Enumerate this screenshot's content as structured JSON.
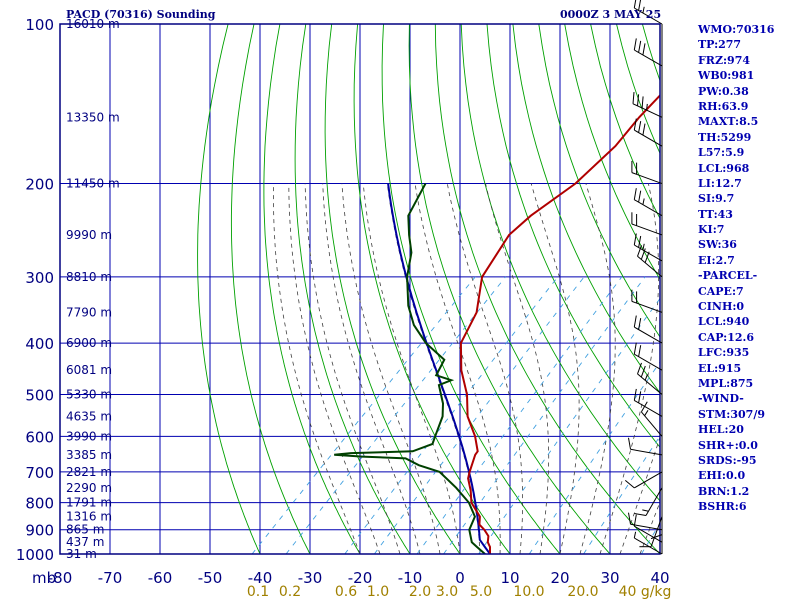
{
  "header": {
    "station": "PACD (70316) Sounding",
    "valid_time": "0000Z  3 MAY 25"
  },
  "indices": [
    "WMO:70316",
    "TP:277",
    "FRZ:974",
    "WB0:981",
    "PW:0.38",
    "RH:63.9",
    "MAXT:8.5",
    "TH:5299",
    "L57:5.9",
    "LCL:968",
    "LI:12.7",
    "SI:9.7",
    "TT:43",
    "KI:7",
    "SW:36",
    "EI:2.7",
    "-PARCEL-",
    "CAPE:7",
    "CINH:0",
    "LCL:940",
    "CAP:12.6",
    "LFC:935",
    "EL:915",
    "MPL:875",
    "-WIND-",
    "STM:307/9",
    "HEL:20",
    "SHR+:0.0",
    "SRDS:-95",
    "EHI:0.0",
    "BRN:1.2",
    "BSHR:6"
  ],
  "colors": {
    "frame": "#000080",
    "grid": "#0000b0",
    "dry_adiabat": "#00a000",
    "moist_adiabat": "#404040",
    "mixing_ratio": "#40a0e0",
    "temperature": "#b00000",
    "dewpoint": "#004000",
    "parcel": "#0000a0",
    "mixing_label": "#a08000",
    "wind_barb": "#000000",
    "text": "#000080"
  },
  "chart_data": {
    "type": "line",
    "title": "PACD (70316) Sounding",
    "subtitle": "0000Z  3 MAY 25",
    "x_axis": {
      "unit_label": "mb",
      "ticks": [
        -80,
        -70,
        -60,
        -50,
        -40,
        -30,
        -20,
        -10,
        0,
        10,
        20,
        30,
        40
      ],
      "tick_labels": [
        "-80",
        "-70",
        "-60",
        "-50",
        "-40",
        "-30",
        "-20",
        "-10",
        "0",
        "10",
        "20",
        "30",
        "40"
      ],
      "range": [
        -80,
        40
      ]
    },
    "y_axis": {
      "scale": "log",
      "reversed": true,
      "range": [
        1000,
        100
      ],
      "ticks": [
        100,
        200,
        300,
        400,
        500,
        600,
        700,
        800,
        900,
        1000
      ],
      "tick_labels": [
        "100",
        "200",
        "300",
        "400",
        "500",
        "600",
        "700",
        "800",
        "900",
        "1000"
      ]
    },
    "height_labels": [
      {
        "p": 100,
        "label": "16010 m"
      },
      {
        "p": 150,
        "label": "13350 m"
      },
      {
        "p": 200,
        "label": "11450 m"
      },
      {
        "p": 250,
        "label": "9990 m"
      },
      {
        "p": 300,
        "label": "8810 m"
      },
      {
        "p": 350,
        "label": "7790 m"
      },
      {
        "p": 400,
        "label": "6900 m"
      },
      {
        "p": 450,
        "label": "6081 m"
      },
      {
        "p": 500,
        "label": "5330 m"
      },
      {
        "p": 550,
        "label": "4635 m"
      },
      {
        "p": 600,
        "label": "3990 m"
      },
      {
        "p": 650,
        "label": "3385 m"
      },
      {
        "p": 700,
        "label": "2821 m"
      },
      {
        "p": 750,
        "label": "2290 m"
      },
      {
        "p": 800,
        "label": "1791 m"
      },
      {
        "p": 850,
        "label": "1316 m"
      },
      {
        "p": 900,
        "label": "865 m"
      },
      {
        "p": 950,
        "label": "437 m"
      },
      {
        "p": 1000,
        "label": "31 m"
      }
    ],
    "mixing_ratio_labels": [
      "0.1",
      "0.2",
      "0.6",
      "1.0",
      "2.0",
      "3.0",
      "5.0",
      "10.0",
      "20.0",
      "40 g/kg"
    ],
    "mixing_ratio_values": [
      0.1,
      0.2,
      0.6,
      1.0,
      2.0,
      3.0,
      5.0,
      10.0,
      20.0,
      40.0
    ],
    "temperature": [
      [
        1000,
        6.0
      ],
      [
        970,
        4.6
      ],
      [
        950,
        3.2
      ],
      [
        925,
        2.1
      ],
      [
        900,
        0.0
      ],
      [
        880,
        -2.0
      ],
      [
        850,
        -3.5
      ],
      [
        800,
        -8.0
      ],
      [
        760,
        -10.5
      ],
      [
        720,
        -13.5
      ],
      [
        700,
        -14.5
      ],
      [
        650,
        -16.8
      ],
      [
        640,
        -17.0
      ],
      [
        600,
        -20.5
      ],
      [
        550,
        -26.0
      ],
      [
        500,
        -30.5
      ],
      [
        450,
        -36.5
      ],
      [
        400,
        -42.0
      ],
      [
        350,
        -45.0
      ],
      [
        300,
        -51.0
      ],
      [
        250,
        -54.0
      ],
      [
        230,
        -53.5
      ],
      [
        200,
        -51.0
      ],
      [
        170,
        -50.5
      ],
      [
        150,
        -51.5
      ],
      [
        120,
        -52.0
      ],
      [
        100,
        -53.0
      ]
    ],
    "dewpoint": [
      [
        1000,
        5.0
      ],
      [
        970,
        2.0
      ],
      [
        950,
        0.0
      ],
      [
        900,
        -3.0
      ],
      [
        850,
        -4.5
      ],
      [
        800,
        -8.5
      ],
      [
        750,
        -14.0
      ],
      [
        700,
        -20.5
      ],
      [
        680,
        -26.0
      ],
      [
        660,
        -30.0
      ],
      [
        655,
        -39.0
      ],
      [
        650,
        -45.0
      ],
      [
        645,
        -42.0
      ],
      [
        640,
        -30.0
      ],
      [
        620,
        -27.5
      ],
      [
        600,
        -28.5
      ],
      [
        550,
        -31.0
      ],
      [
        520,
        -33.5
      ],
      [
        480,
        -38.0
      ],
      [
        470,
        -36.5
      ],
      [
        460,
        -40.5
      ],
      [
        430,
        -42.0
      ],
      [
        400,
        -49.0
      ],
      [
        370,
        -55.0
      ],
      [
        340,
        -60.0
      ],
      [
        300,
        -66.0
      ],
      [
        270,
        -70.0
      ],
      [
        250,
        -74.0
      ],
      [
        230,
        -78.0
      ],
      [
        200,
        -81.0
      ]
    ],
    "parcel_path_pressures": [
      1000,
      970,
      950,
      900,
      850,
      800,
      750,
      700,
      650,
      600,
      550,
      500,
      450,
      400,
      350,
      300,
      250,
      220
    ],
    "wind_barbs": [
      {
        "p": 100,
        "dir": 300,
        "spd": 25
      },
      {
        "p": 120,
        "dir": 300,
        "spd": 30
      },
      {
        "p": 150,
        "dir": 295,
        "spd": 35
      },
      {
        "p": 170,
        "dir": 300,
        "spd": 30
      },
      {
        "p": 200,
        "dir": 290,
        "spd": 20
      },
      {
        "p": 230,
        "dir": 300,
        "spd": 25
      },
      {
        "p": 250,
        "dir": 290,
        "spd": 20
      },
      {
        "p": 280,
        "dir": 300,
        "spd": 25
      },
      {
        "p": 300,
        "dir": 310,
        "spd": 30
      },
      {
        "p": 350,
        "dir": 290,
        "spd": 20
      },
      {
        "p": 400,
        "dir": 300,
        "spd": 20
      },
      {
        "p": 450,
        "dir": 300,
        "spd": 20
      },
      {
        "p": 500,
        "dir": 310,
        "spd": 25
      },
      {
        "p": 550,
        "dir": 300,
        "spd": 20
      },
      {
        "p": 600,
        "dir": 320,
        "spd": 15
      },
      {
        "p": 650,
        "dir": 280,
        "spd": 10
      },
      {
        "p": 700,
        "dir": 240,
        "spd": 10
      },
      {
        "p": 750,
        "dir": 210,
        "spd": 15
      },
      {
        "p": 800,
        "dir": 180,
        "spd": 10
      },
      {
        "p": 850,
        "dir": 200,
        "spd": 10
      },
      {
        "p": 900,
        "dir": 280,
        "spd": 10
      },
      {
        "p": 950,
        "dir": 300,
        "spd": 10
      },
      {
        "p": 1000,
        "dir": 300,
        "spd": 5
      }
    ]
  }
}
